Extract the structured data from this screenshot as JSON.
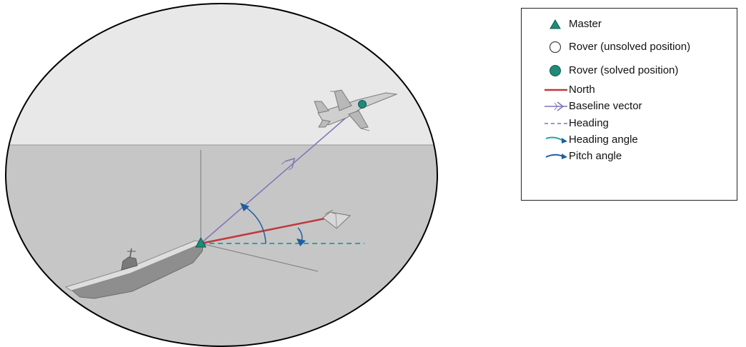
{
  "legend": {
    "items": [
      {
        "key": "master",
        "label": "Master"
      },
      {
        "key": "rover_unsolved",
        "label": "Rover (unsolved position)"
      },
      {
        "key": "rover_solved",
        "label": "Rover (solved position)"
      },
      {
        "key": "north",
        "label": "North"
      },
      {
        "key": "baseline",
        "label": "Baseline vector"
      },
      {
        "key": "heading",
        "label": "Heading"
      },
      {
        "key": "heading_angle",
        "label": "Heading angle"
      },
      {
        "key": "pitch_angle",
        "label": "Pitch angle"
      }
    ]
  },
  "colors": {
    "sky": "#e8e8e8",
    "ground": "#c6c6c6",
    "master": "#1f8a78",
    "rover": "#1f8a78",
    "north": "#c0393e",
    "baseline": "#7d74b8",
    "heading": "#2aa3a8",
    "angle_arc": "#1f5f9f"
  }
}
